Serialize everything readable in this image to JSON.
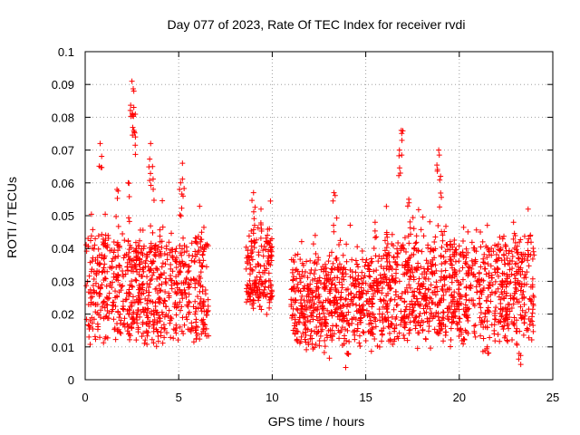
{
  "chart_data": {
    "type": "scatter",
    "title": "Day 077 of 2023, Rate Of TEC Index for receiver rvdi",
    "xlabel": "GPS time / hours",
    "ylabel": "ROTI / TECUs",
    "xlim": [
      0,
      25
    ],
    "ylim": [
      0,
      0.1
    ],
    "x_ticks": [
      "0",
      "5",
      "10",
      "15",
      "20",
      "25"
    ],
    "y_ticks": [
      "0",
      "0.01",
      "0.02",
      "0.03",
      "0.04",
      "0.05",
      "0.06",
      "0.07",
      "0.08",
      "0.09",
      "0.1"
    ],
    "grid": true,
    "marker": "+",
    "color": "#ff0000",
    "segments": [
      {
        "x_range": [
          0.0,
          6.6
        ],
        "y_band": [
          0.012,
          0.045
        ],
        "spikes": [
          [
            0.8,
            0.072
          ],
          [
            2.5,
            0.091
          ],
          [
            2.6,
            0.088
          ],
          [
            2.6,
            0.083
          ],
          [
            2.6,
            0.076
          ],
          [
            3.5,
            0.072
          ],
          [
            3.6,
            0.065
          ],
          [
            5.2,
            0.066
          ],
          [
            5.1,
            0.06
          ],
          [
            2.3,
            0.06
          ],
          [
            1.7,
            0.058
          ]
        ]
      },
      {
        "x_range": [
          8.6,
          10.0
        ],
        "y_band": [
          0.022,
          0.045
        ],
        "spikes": [
          [
            9.0,
            0.057
          ],
          [
            9.4,
            0.052
          ],
          [
            9.9,
            0.035
          ]
        ]
      },
      {
        "x_range": [
          11.0,
          16.0
        ],
        "y_band": [
          0.01,
          0.038
        ],
        "spikes": [
          [
            13.3,
            0.057
          ],
          [
            12.3,
            0.044
          ],
          [
            14.0,
            0.008
          ],
          [
            15.5,
            0.048
          ]
        ]
      },
      {
        "x_range": [
          16.0,
          24.0
        ],
        "y_band": [
          0.012,
          0.045
        ],
        "spikes": [
          [
            16.9,
            0.076
          ],
          [
            16.8,
            0.07
          ],
          [
            18.9,
            0.07
          ],
          [
            19.0,
            0.062
          ],
          [
            17.3,
            0.055
          ],
          [
            22.9,
            0.048
          ],
          [
            21.5,
            0.01
          ],
          [
            23.2,
            0.008
          ]
        ]
      }
    ]
  }
}
